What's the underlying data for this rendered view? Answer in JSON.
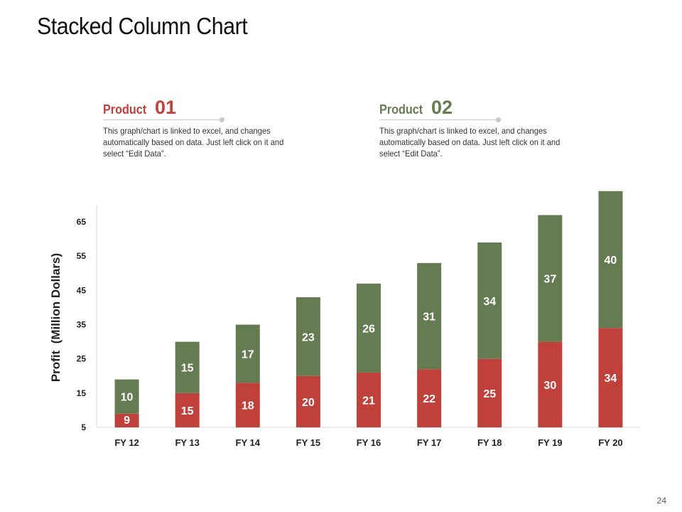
{
  "slide": {
    "title": "Stacked Column Chart",
    "page_number": "24"
  },
  "legend": [
    {
      "word": "Product",
      "number": "01",
      "color": "#c0413c",
      "description": "This graph/chart is linked to excel, and changes automatically based on data. Just left click on it and select “Edit Data”."
    },
    {
      "word": "Product",
      "number": "02",
      "color": "#657b52",
      "description": "This graph/chart is linked to excel, and changes automatically based on data. Just left click on it and select “Edit Data”."
    }
  ],
  "chart_data": {
    "type": "bar",
    "stacked": true,
    "title": "",
    "xlabel": "",
    "ylabel": "Profit  (Million Dollars)",
    "categories": [
      "FY 12",
      "FY 13",
      "FY 14",
      "FY 15",
      "FY 16",
      "FY 17",
      "FY 18",
      "FY 19",
      "FY 20"
    ],
    "yticks": [
      5,
      15,
      25,
      35,
      45,
      55,
      65
    ],
    "ylim": [
      5,
      70
    ],
    "grid": false,
    "series": [
      {
        "name": "Product 01",
        "color": "#c0413c",
        "values": [
          9,
          15,
          18,
          20,
          21,
          22,
          25,
          30,
          34
        ]
      },
      {
        "name": "Product 02",
        "color": "#657b52",
        "values": [
          10,
          15,
          17,
          23,
          26,
          31,
          34,
          37,
          40
        ]
      }
    ]
  }
}
